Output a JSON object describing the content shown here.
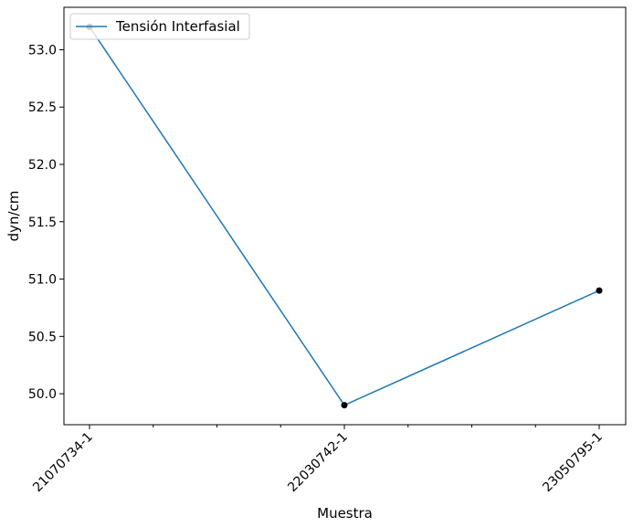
{
  "chart_data": {
    "type": "line",
    "categories": [
      "21070734-1",
      "22030742-1",
      "23050795-1"
    ],
    "series": [
      {
        "name": "Tensión Interfasial",
        "values": [
          53.2,
          49.9,
          50.9
        ]
      }
    ],
    "xlabel": "Muestra",
    "ylabel": "dyn/cm",
    "yticks": [
      "50.0",
      "50.5",
      "51.0",
      "51.5",
      "52.0",
      "52.5",
      "53.0"
    ],
    "ylim": [
      49.73,
      53.37
    ],
    "grid": false,
    "legend_position": "top-left",
    "line_color": "#1f77b4",
    "marker_color": "#000000"
  }
}
